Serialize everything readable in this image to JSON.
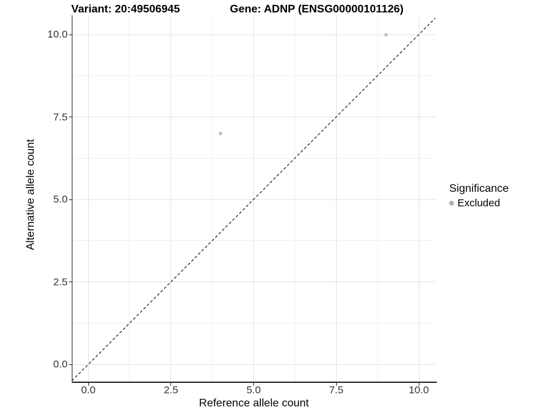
{
  "chart_data": {
    "type": "scatter",
    "titles": {
      "variant": "Variant: 20:49506945",
      "gene": "Gene: ADNP (ENSG00000101126)"
    },
    "xlabel": "Reference allele count",
    "ylabel": "Alternative allele count",
    "xlim": [
      0,
      10
    ],
    "ylim": [
      0,
      10
    ],
    "x_tick_labels": [
      "0.0",
      "2.5",
      "5.0",
      "7.5",
      "10.0"
    ],
    "y_tick_labels": [
      "0.0",
      "2.5",
      "5.0",
      "7.5",
      "10.0"
    ],
    "x_tick_values": [
      0,
      2.5,
      5,
      7.5,
      10
    ],
    "y_tick_values": [
      0,
      2.5,
      5,
      7.5,
      10
    ],
    "minor_tick_values": [
      1.25,
      3.75,
      6.25,
      8.75
    ],
    "grid": "major+minor",
    "grid_major_color": "#e4e4e4",
    "grid_minor_color": "#f0f0f0",
    "series": [
      {
        "name": "Excluded",
        "color": "#bdbdbd",
        "marker": "circle",
        "points": [
          {
            "x": 4,
            "y": 7
          },
          {
            "x": 9,
            "y": 10
          }
        ]
      }
    ],
    "identity_line": {
      "style": "dashed",
      "color": "#000000",
      "from": [
        -0.5,
        -0.5
      ],
      "to": [
        10.5,
        10.5
      ]
    },
    "legend": {
      "title": "Significance",
      "position": "right",
      "items": [
        {
          "label": "Excluded",
          "color": "#b0b0b0"
        }
      ]
    }
  }
}
